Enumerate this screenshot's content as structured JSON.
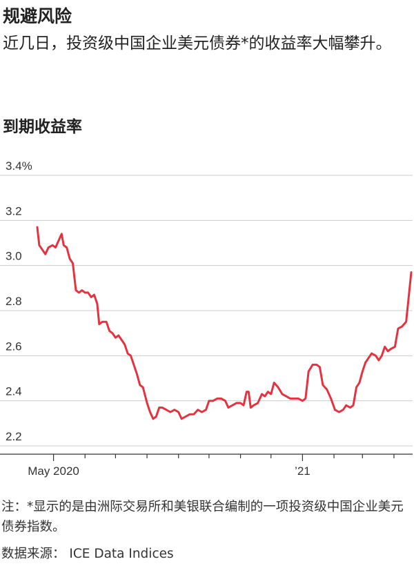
{
  "title": "规避风险",
  "subtitle": "近几日，投资级中国企业美元债券*的收益率大幅攀升。",
  "note": "注：*显示的是由洲际交易所和美银联合编制的一项投资级中国企业美元债券指数。",
  "source": "数据来源： ICE Data Indices",
  "colors": {
    "line": "#e5323e",
    "grid": "#cccccc",
    "axis": "#333333"
  },
  "chart_data": {
    "type": "line",
    "title": "到期收益率",
    "ylim": [
      2.2,
      3.4
    ],
    "y_ticks": [
      2.2,
      2.4,
      2.6,
      2.8,
      3.0,
      3.2,
      3.4
    ],
    "y_tick_labels": [
      "2.2",
      "2.4",
      "2.6",
      "2.8",
      "3.0",
      "3.2",
      "3.4%"
    ],
    "x_labels": [
      {
        "date": "2020-05-01",
        "label": "May 2020"
      },
      {
        "date": "2021-01-01",
        "label": "’21"
      }
    ],
    "x_ticks": [
      "2020-05-01",
      "2020-06-01",
      "2020-07-01",
      "2020-08-01",
      "2020-09-01",
      "2020-10-01",
      "2020-11-01",
      "2020-12-01",
      "2021-01-01",
      "2021-02-01",
      "2021-03-01",
      "2021-04-01"
    ],
    "x_start": "2020-04-15",
    "x_end": "2021-04-18",
    "series": [
      {
        "points": [
          [
            "2020-04-15",
            3.17
          ],
          [
            "2020-04-17",
            3.09
          ],
          [
            "2020-04-20",
            3.07
          ],
          [
            "2020-04-23",
            3.05
          ],
          [
            "2020-04-26",
            3.08
          ],
          [
            "2020-04-30",
            3.09
          ],
          [
            "2020-05-03",
            3.08
          ],
          [
            "2020-05-06",
            3.11
          ],
          [
            "2020-05-09",
            3.14
          ],
          [
            "2020-05-11",
            3.09
          ],
          [
            "2020-05-14",
            3.08
          ],
          [
            "2020-05-17",
            3.03
          ],
          [
            "2020-05-20",
            3.01
          ],
          [
            "2020-05-23",
            2.89
          ],
          [
            "2020-05-26",
            2.88
          ],
          [
            "2020-05-29",
            2.89
          ],
          [
            "2020-06-01",
            2.88
          ],
          [
            "2020-06-04",
            2.88
          ],
          [
            "2020-06-07",
            2.86
          ],
          [
            "2020-06-10",
            2.87
          ],
          [
            "2020-06-13",
            2.83
          ],
          [
            "2020-06-15",
            2.74
          ],
          [
            "2020-06-18",
            2.75
          ],
          [
            "2020-06-22",
            2.75
          ],
          [
            "2020-06-25",
            2.71
          ],
          [
            "2020-06-28",
            2.7
          ],
          [
            "2020-07-01",
            2.68
          ],
          [
            "2020-07-04",
            2.69
          ],
          [
            "2020-07-07",
            2.67
          ],
          [
            "2020-07-10",
            2.65
          ],
          [
            "2020-07-13",
            2.61
          ],
          [
            "2020-07-16",
            2.6
          ],
          [
            "2020-07-19",
            2.56
          ],
          [
            "2020-07-22",
            2.52
          ],
          [
            "2020-07-25",
            2.47
          ],
          [
            "2020-07-28",
            2.46
          ],
          [
            "2020-08-01",
            2.39
          ],
          [
            "2020-08-04",
            2.35
          ],
          [
            "2020-08-07",
            2.32
          ],
          [
            "2020-08-10",
            2.33
          ],
          [
            "2020-08-13",
            2.37
          ],
          [
            "2020-08-16",
            2.37
          ],
          [
            "2020-08-20",
            2.36
          ],
          [
            "2020-08-24",
            2.35
          ],
          [
            "2020-08-28",
            2.36
          ],
          [
            "2020-09-01",
            2.35
          ],
          [
            "2020-09-04",
            2.32
          ],
          [
            "2020-09-08",
            2.33
          ],
          [
            "2020-09-12",
            2.34
          ],
          [
            "2020-09-16",
            2.34
          ],
          [
            "2020-09-20",
            2.36
          ],
          [
            "2020-09-24",
            2.35
          ],
          [
            "2020-09-28",
            2.36
          ],
          [
            "2020-10-01",
            2.4
          ],
          [
            "2020-10-05",
            2.4
          ],
          [
            "2020-10-09",
            2.41
          ],
          [
            "2020-10-13",
            2.41
          ],
          [
            "2020-10-17",
            2.4
          ],
          [
            "2020-10-20",
            2.37
          ],
          [
            "2020-10-24",
            2.38
          ],
          [
            "2020-10-28",
            2.39
          ],
          [
            "2020-11-01",
            2.39
          ],
          [
            "2020-11-04",
            2.38
          ],
          [
            "2020-11-07",
            2.44
          ],
          [
            "2020-11-09",
            2.44
          ],
          [
            "2020-11-11",
            2.37
          ],
          [
            "2020-11-14",
            2.38
          ],
          [
            "2020-11-18",
            2.39
          ],
          [
            "2020-11-22",
            2.43
          ],
          [
            "2020-11-25",
            2.42
          ],
          [
            "2020-11-28",
            2.44
          ],
          [
            "2020-12-01",
            2.43
          ],
          [
            "2020-12-04",
            2.48
          ],
          [
            "2020-12-08",
            2.46
          ],
          [
            "2020-12-12",
            2.43
          ],
          [
            "2020-12-16",
            2.42
          ],
          [
            "2020-12-20",
            2.41
          ],
          [
            "2020-12-24",
            2.41
          ],
          [
            "2020-12-28",
            2.41
          ],
          [
            "2021-01-01",
            2.4
          ],
          [
            "2021-01-04",
            2.41
          ],
          [
            "2021-01-07",
            2.53
          ],
          [
            "2021-01-11",
            2.56
          ],
          [
            "2021-01-15",
            2.56
          ],
          [
            "2021-01-18",
            2.55
          ],
          [
            "2021-01-21",
            2.47
          ],
          [
            "2021-01-25",
            2.45
          ],
          [
            "2021-01-29",
            2.41
          ],
          [
            "2021-02-02",
            2.36
          ],
          [
            "2021-02-06",
            2.35
          ],
          [
            "2021-02-10",
            2.36
          ],
          [
            "2021-02-13",
            2.38
          ],
          [
            "2021-02-17",
            2.37
          ],
          [
            "2021-02-20",
            2.38
          ],
          [
            "2021-02-23",
            2.46
          ],
          [
            "2021-02-26",
            2.48
          ],
          [
            "2021-03-01",
            2.53
          ],
          [
            "2021-03-04",
            2.57
          ],
          [
            "2021-03-07",
            2.59
          ],
          [
            "2021-03-10",
            2.61
          ],
          [
            "2021-03-14",
            2.6
          ],
          [
            "2021-03-17",
            2.58
          ],
          [
            "2021-03-20",
            2.6
          ],
          [
            "2021-03-23",
            2.64
          ],
          [
            "2021-03-26",
            2.62
          ],
          [
            "2021-03-29",
            2.63
          ],
          [
            "2021-04-02",
            2.64
          ],
          [
            "2021-04-05",
            2.72
          ],
          [
            "2021-04-09",
            2.73
          ],
          [
            "2021-04-13",
            2.75
          ],
          [
            "2021-04-18",
            2.97
          ]
        ]
      }
    ]
  }
}
